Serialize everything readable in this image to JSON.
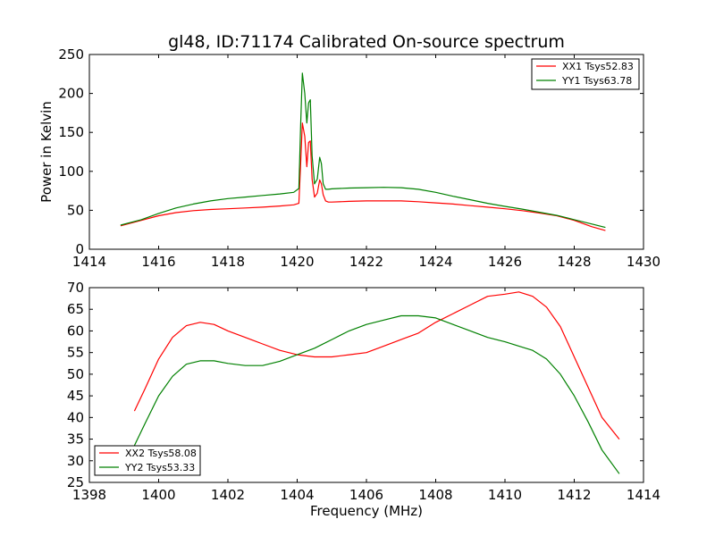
{
  "chart_data": [
    {
      "type": "line",
      "title": "gl48, ID:71174 Calibrated On-source spectrum",
      "xlabel": "",
      "ylabel": "Power in Kelvin",
      "xlim": [
        1414,
        1430
      ],
      "ylim": [
        0,
        250
      ],
      "xticks": [
        1414,
        1416,
        1418,
        1420,
        1422,
        1424,
        1426,
        1428,
        1430
      ],
      "yticks": [
        0,
        50,
        100,
        150,
        200,
        250
      ],
      "grid": false,
      "legend_position": "top-right",
      "series": [
        {
          "name": "XX1 Tsys52.83",
          "color": "#ff0000",
          "x": [
            1414.9,
            1415.5,
            1416.0,
            1416.5,
            1417.0,
            1417.5,
            1418.0,
            1418.5,
            1419.0,
            1419.5,
            1419.9,
            1420.05,
            1420.1,
            1420.15,
            1420.22,
            1420.28,
            1420.33,
            1420.38,
            1420.43,
            1420.5,
            1420.58,
            1420.65,
            1420.7,
            1420.75,
            1420.82,
            1420.9,
            1421.0,
            1421.5,
            1422.0,
            1422.5,
            1423.0,
            1423.5,
            1424.0,
            1424.5,
            1425.0,
            1425.5,
            1426.0,
            1426.5,
            1427.0,
            1427.5,
            1428.0,
            1428.5,
            1428.9
          ],
          "y": [
            30,
            37,
            43,
            47,
            49.5,
            51,
            52,
            53,
            54,
            55.5,
            57,
            59,
            110,
            162,
            145,
            106,
            137,
            139,
            90,
            67,
            72,
            89,
            84,
            70,
            62,
            60.5,
            60.5,
            61.5,
            62,
            62,
            62,
            61,
            59.5,
            58,
            56,
            54,
            52,
            49.5,
            46.5,
            43,
            37,
            29,
            24
          ]
        },
        {
          "name": "YY1 Tsys63.78",
          "color": "#008000",
          "x": [
            1414.9,
            1415.5,
            1416.0,
            1416.5,
            1417.0,
            1417.5,
            1418.0,
            1418.5,
            1419.0,
            1419.5,
            1419.9,
            1420.05,
            1420.1,
            1420.15,
            1420.22,
            1420.28,
            1420.33,
            1420.38,
            1420.43,
            1420.5,
            1420.58,
            1420.65,
            1420.7,
            1420.75,
            1420.82,
            1420.9,
            1421.0,
            1421.5,
            1422.0,
            1422.5,
            1423.0,
            1423.5,
            1424.0,
            1424.5,
            1425.0,
            1425.5,
            1426.0,
            1426.5,
            1427.0,
            1427.5,
            1428.0,
            1428.5,
            1428.9
          ],
          "y": [
            31,
            38,
            46,
            53,
            58,
            62,
            65,
            67,
            69,
            71,
            73,
            78,
            160,
            226,
            200,
            162,
            188,
            192,
            120,
            84,
            90,
            118,
            110,
            84,
            77,
            77,
            77.5,
            78.5,
            79,
            79.5,
            79,
            77,
            73,
            68,
            63.5,
            59,
            55,
            51.5,
            47.5,
            43.5,
            38,
            32.5,
            28
          ]
        }
      ]
    },
    {
      "type": "line",
      "title": "",
      "xlabel": "Frequency (MHz)",
      "ylabel": "",
      "xlim": [
        1398,
        1414
      ],
      "ylim": [
        25,
        70
      ],
      "xticks": [
        1398,
        1400,
        1402,
        1404,
        1406,
        1408,
        1410,
        1412,
        1414
      ],
      "yticks": [
        25,
        30,
        35,
        40,
        45,
        50,
        55,
        60,
        65,
        70
      ],
      "grid": false,
      "legend_position": "bottom-left",
      "series": [
        {
          "name": "XX2 Tsys58.08",
          "color": "#ff0000",
          "x": [
            1399.3,
            1399.6,
            1400.0,
            1400.4,
            1400.8,
            1401.2,
            1401.6,
            1402.0,
            1402.5,
            1403.0,
            1403.5,
            1404.0,
            1404.5,
            1405.0,
            1405.5,
            1406.0,
            1406.5,
            1407.0,
            1407.5,
            1408.0,
            1408.5,
            1409.0,
            1409.5,
            1410.0,
            1410.4,
            1410.8,
            1411.2,
            1411.6,
            1412.0,
            1412.4,
            1412.8,
            1413.3
          ],
          "y": [
            41.5,
            46.5,
            53.5,
            58.5,
            61.2,
            62,
            61.5,
            60,
            58.5,
            57,
            55.5,
            54.5,
            54,
            54,
            54.5,
            55,
            56.5,
            58,
            59.5,
            62,
            64,
            66,
            68,
            68.5,
            69,
            68,
            65.5,
            61,
            54,
            47,
            40,
            35
          ]
        },
        {
          "name": "YY2 Tsys53.33",
          "color": "#008000",
          "x": [
            1399.3,
            1399.6,
            1400.0,
            1400.4,
            1400.8,
            1401.2,
            1401.6,
            1402.0,
            1402.5,
            1403.0,
            1403.5,
            1404.0,
            1404.5,
            1405.0,
            1405.5,
            1406.0,
            1406.5,
            1407.0,
            1407.5,
            1408.0,
            1408.5,
            1409.0,
            1409.5,
            1410.0,
            1410.4,
            1410.8,
            1411.2,
            1411.6,
            1412.0,
            1412.4,
            1412.8,
            1413.3
          ],
          "y": [
            33.5,
            38.5,
            45,
            49.5,
            52.3,
            53.1,
            53.1,
            52.5,
            52,
            52,
            53,
            54.5,
            56,
            58,
            60,
            61.5,
            62.5,
            63.5,
            63.5,
            63,
            61.5,
            60,
            58.5,
            57.5,
            56.5,
            55.5,
            53.5,
            50,
            45,
            39,
            32.5,
            27
          ]
        }
      ]
    }
  ]
}
